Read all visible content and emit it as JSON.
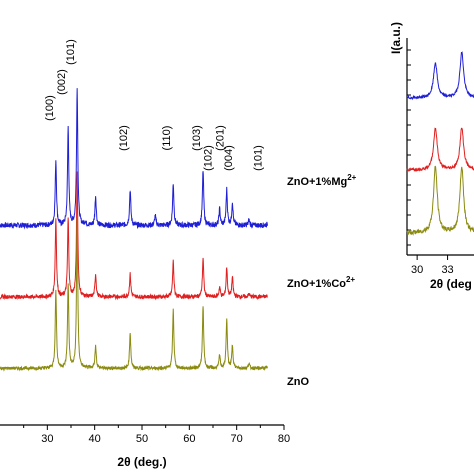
{
  "chart_data": [
    {
      "type": "line",
      "title": "",
      "xlabel": "2θ (deg.)",
      "ylabel": "",
      "xlim": [
        20,
        80
      ],
      "xticks": [
        30,
        40,
        50,
        60,
        70,
        80
      ],
      "grid": false,
      "legend": "inline labels right of each trace",
      "series": [
        {
          "name": "ZnO+1%Mg",
          "name_sup": "2+",
          "color": "#1f1fd6",
          "offset": 2.2,
          "noise": 0.08,
          "peaks": [
            [
              31.8,
              1.0
            ],
            [
              34.4,
              1.5
            ],
            [
              36.3,
              2.1
            ],
            [
              38.0,
              0.05
            ],
            [
              40.2,
              0.45
            ],
            [
              47.5,
              0.55
            ],
            [
              52.8,
              0.15
            ],
            [
              56.6,
              0.65
            ],
            [
              62.9,
              0.85
            ],
            [
              66.4,
              0.25
            ],
            [
              67.9,
              0.55
            ],
            [
              69.1,
              0.35
            ],
            [
              72.6,
              0.08
            ],
            [
              76.9,
              0.15
            ]
          ]
        },
        {
          "name": "ZnO+1%Co",
          "name_sup": "2+",
          "color": "#e02020",
          "offset": 1.1,
          "noise": 0.06,
          "peaks": [
            [
              31.8,
              1.2
            ],
            [
              34.4,
              1.2
            ],
            [
              36.3,
              1.9
            ],
            [
              40.2,
              0.35
            ],
            [
              47.5,
              0.35
            ],
            [
              56.6,
              0.55
            ],
            [
              62.9,
              0.6
            ],
            [
              66.4,
              0.15
            ],
            [
              67.9,
              0.45
            ],
            [
              69.1,
              0.3
            ],
            [
              72.6,
              0.05
            ],
            [
              76.9,
              0.1
            ]
          ]
        },
        {
          "name": "ZnO",
          "name_sup": "",
          "color": "#8b8b10",
          "offset": 0.0,
          "noise": 0.05,
          "peaks": [
            [
              31.8,
              1.2
            ],
            [
              34.4,
              1.3
            ],
            [
              36.3,
              2.3
            ],
            [
              40.2,
              0.35
            ],
            [
              47.5,
              0.55
            ],
            [
              56.6,
              0.9
            ],
            [
              62.9,
              0.95
            ],
            [
              66.4,
              0.2
            ],
            [
              67.9,
              0.75
            ],
            [
              69.1,
              0.35
            ],
            [
              72.6,
              0.08
            ],
            [
              76.9,
              0.15
            ]
          ]
        }
      ],
      "annotations": [
        {
          "text": "(100)",
          "x": 31.8
        },
        {
          "text": "(002)",
          "x": 34.4
        },
        {
          "text": "(101)",
          "x": 36.3
        },
        {
          "text": "(102)",
          "x": 47.5
        },
        {
          "text": "(110)",
          "x": 56.6
        },
        {
          "text": "(103)",
          "x": 62.9
        },
        {
          "text": "(102)",
          "x": 65.3
        },
        {
          "text": "(201)",
          "x": 67.9
        },
        {
          "text": "(004)",
          "x": 69.6
        },
        {
          "text": "(101)",
          "x": 75.9
        }
      ]
    },
    {
      "type": "line",
      "title": "",
      "xlabel": "2θ (deg",
      "ylabel": "I(a.u.)",
      "xlim": [
        29,
        36
      ],
      "xticks": [
        30,
        33
      ],
      "grid": false,
      "series": [
        {
          "name": "",
          "color": "#1f1fd6",
          "peaks": [
            [
              31.8,
              1.0
            ],
            [
              34.4,
              1.3
            ]
          ]
        },
        {
          "name": "",
          "color": "#e02020",
          "peaks": [
            [
              31.8,
              1.1
            ],
            [
              34.4,
              1.1
            ]
          ]
        },
        {
          "name": "",
          "color": "#8b8b10",
          "peaks": [
            [
              31.8,
              1.2
            ],
            [
              34.4,
              1.2
            ]
          ]
        }
      ]
    }
  ]
}
